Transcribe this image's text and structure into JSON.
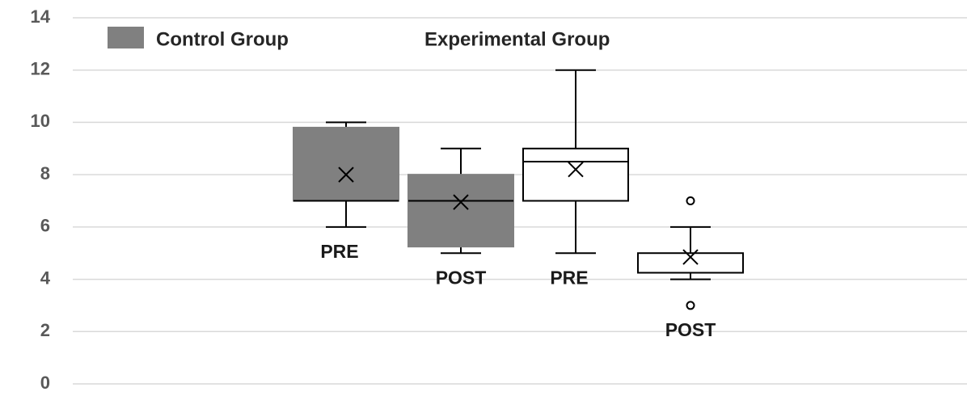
{
  "chart_data": {
    "type": "box",
    "ylim": [
      0,
      14
    ],
    "yticks": [
      0,
      2,
      4,
      6,
      8,
      10,
      12,
      14
    ],
    "grid": true,
    "legend": "top-left",
    "series": [
      {
        "name": "Control Group",
        "color": "#808080",
        "boxes": [
          {
            "label": "PRE",
            "min": 6,
            "q1": 7,
            "median": 7,
            "q3": 9.8,
            "max": 10,
            "mean": 8,
            "outliers": []
          },
          {
            "label": "POST",
            "min": 5,
            "q1": 5.25,
            "median": 7,
            "q3": 8,
            "max": 9,
            "mean": 6.95,
            "outliers": []
          }
        ]
      },
      {
        "name": "Experimental Group",
        "color": "#ffffff",
        "boxes": [
          {
            "label": "PRE",
            "min": 5,
            "q1": 7,
            "median": 8.5,
            "q3": 9,
            "max": 12,
            "mean": 8.2,
            "outliers": []
          },
          {
            "label": "POST",
            "min": 4,
            "q1": 4.25,
            "median": 4.25,
            "q3": 5,
            "max": 6,
            "mean": 4.85,
            "outliers": [
              7,
              3
            ]
          }
        ]
      }
    ]
  }
}
